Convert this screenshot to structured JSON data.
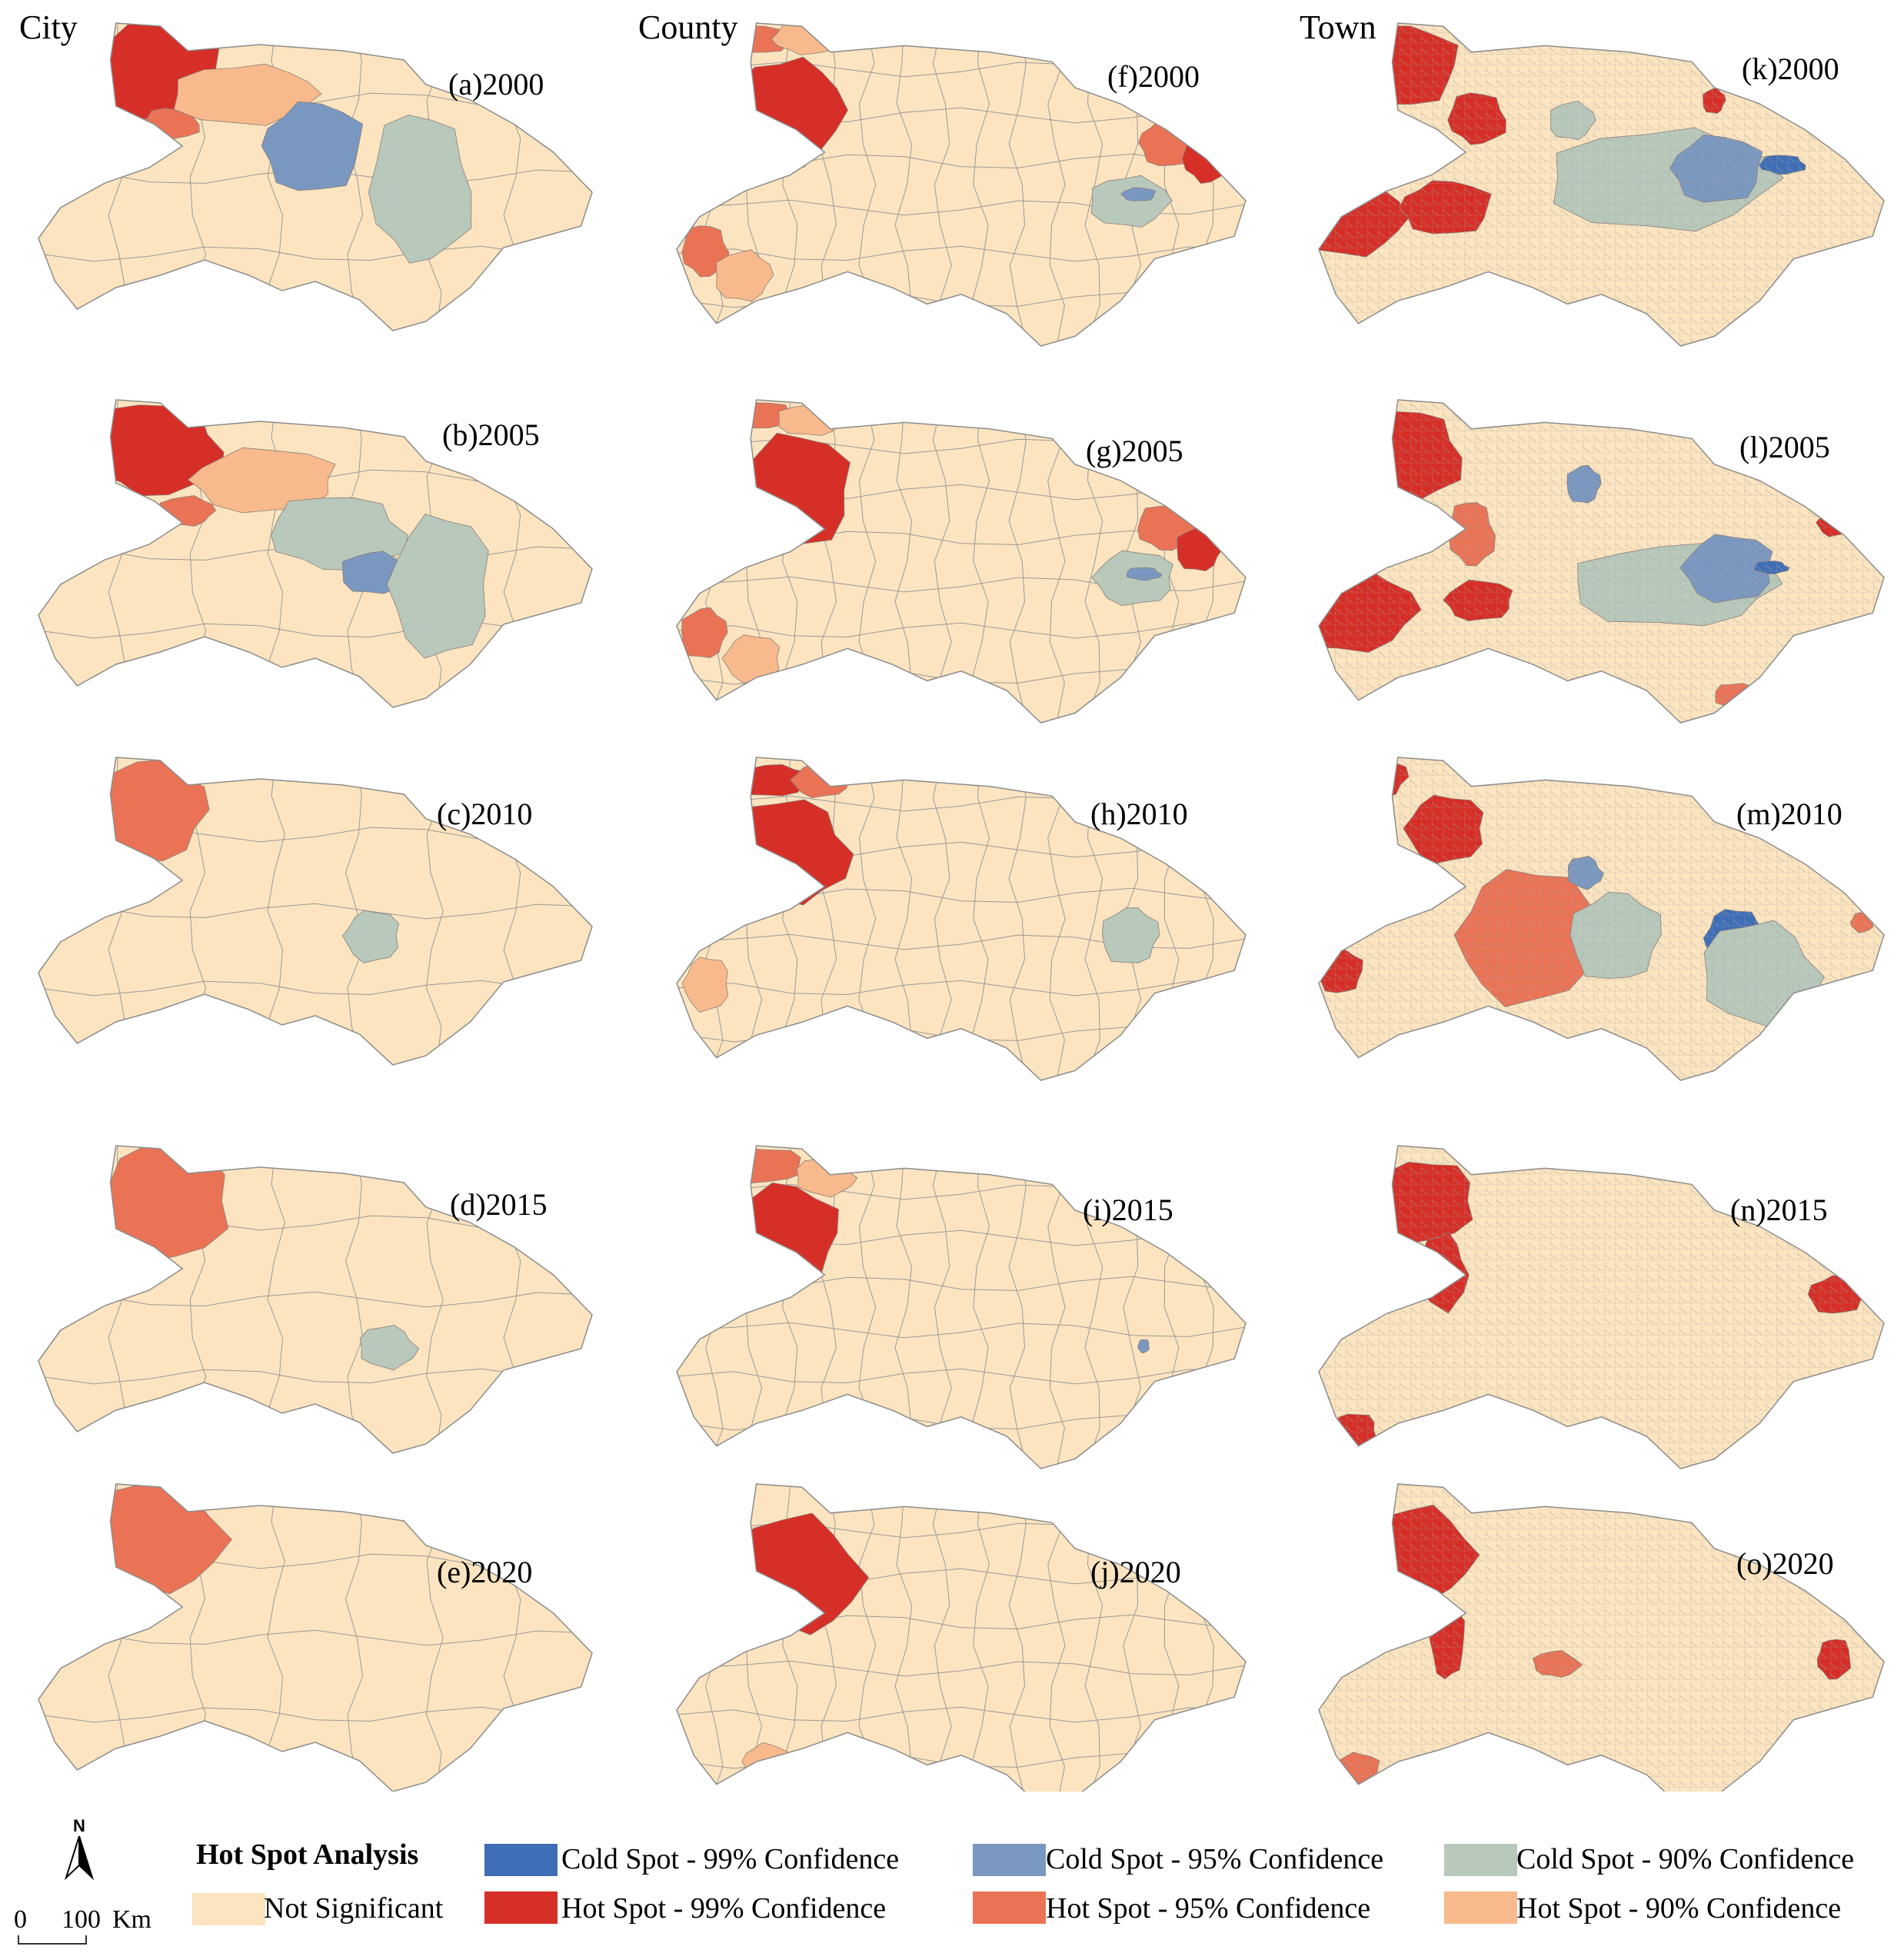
{
  "columns": [
    "City",
    "County",
    "Town"
  ],
  "colors": {
    "not_significant": "#fbe4bf",
    "hot99": "#d62f27",
    "hot95": "#ea7356",
    "hot90": "#f8ba8c",
    "cold99": "#3f6eb6",
    "cold95": "#7a97c0",
    "cold90": "#b8c8bb",
    "border": "#9a9a9a"
  },
  "panels": [
    {
      "label": "(a)2000",
      "level": "City",
      "year": "2000"
    },
    {
      "label": "(b)2005",
      "level": "City",
      "year": "2005"
    },
    {
      "label": "(c)2010",
      "level": "City",
      "year": "2010"
    },
    {
      "label": "(d)2015",
      "level": "City",
      "year": "2015"
    },
    {
      "label": "(e)2020",
      "level": "City",
      "year": "2020"
    },
    {
      "label": "(f)2000",
      "level": "County",
      "year": "2000"
    },
    {
      "label": "(g)2005",
      "level": "County",
      "year": "2005"
    },
    {
      "label": "(h)2010",
      "level": "County",
      "year": "2010"
    },
    {
      "label": "(i)2015",
      "level": "County",
      "year": "2015"
    },
    {
      "label": "(j)2020",
      "level": "County",
      "year": "2020"
    },
    {
      "label": "(k)2000",
      "level": "Town",
      "year": "2000"
    },
    {
      "label": "(l)2005",
      "level": "Town",
      "year": "2005"
    },
    {
      "label": "(m)2010",
      "level": "Town",
      "year": "2010"
    },
    {
      "label": "(n)2015",
      "level": "Town",
      "year": "2015"
    },
    {
      "label": "(o)2020",
      "level": "Town",
      "year": "2020"
    }
  ],
  "legend": {
    "title": "Hot Spot Analysis",
    "not_significant": "Not Significant",
    "items": [
      {
        "key": "cold99",
        "label": "Cold Spot - 99% Confidence"
      },
      {
        "key": "cold95",
        "label": "Cold Spot - 95% Confidence"
      },
      {
        "key": "cold90",
        "label": "Cold Spot - 90% Confidence"
      },
      {
        "key": "hot99",
        "label": "Hot Spot - 99% Confidence"
      },
      {
        "key": "hot95",
        "label": "Hot Spot - 95% Confidence"
      },
      {
        "key": "hot90",
        "label": "Hot Spot - 90% Confidence"
      }
    ]
  },
  "north_arrow": {
    "letter": "N"
  },
  "scale": {
    "zero": "0",
    "distance": "100",
    "unit": "Km"
  }
}
